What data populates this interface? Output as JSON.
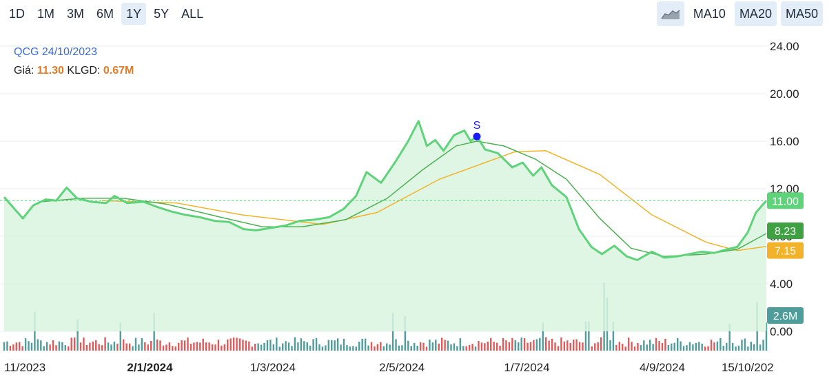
{
  "toolbar": {
    "timeframes": [
      "1D",
      "1M",
      "3M",
      "6M",
      "1Y",
      "5Y",
      "ALL"
    ],
    "active_timeframe": "1Y",
    "chart_type_icon": "area-chart-icon",
    "ma_buttons": [
      "MA10",
      "MA20",
      "MA50"
    ],
    "active_ma": [
      "MA20",
      "MA50"
    ]
  },
  "info": {
    "symbol_date": "QCG 24/10/2023",
    "price_label": "Giá:",
    "price_value": "11.30",
    "volume_label": "KLGD:",
    "volume_value": "0.67M"
  },
  "badges": {
    "last_price": "11.00",
    "ma20": "8.23",
    "ma50": "7.15",
    "volume": "2.6M"
  },
  "marker": {
    "label": "S",
    "date": "2024-06-07",
    "price": 16.4
  },
  "chart_data": {
    "type": "area",
    "y_ticks": [
      "24.00",
      "20.00",
      "16.00",
      "12.00",
      "8.00",
      "4.00",
      "0.00"
    ],
    "ylim": [
      0,
      24
    ],
    "x_ticks": [
      {
        "label": "11/2023",
        "date": "2023-11-01",
        "bold": false
      },
      {
        "label": "2/1/2024",
        "date": "2024-01-02",
        "bold": true
      },
      {
        "label": "1/3/2024",
        "date": "2024-03-01",
        "bold": false
      },
      {
        "label": "2/5/2024",
        "date": "2024-05-02",
        "bold": false
      },
      {
        "label": "1/7/2024",
        "date": "2024-07-01",
        "bold": false
      },
      {
        "label": "4/9/2024",
        "date": "2024-09-04",
        "bold": false
      },
      {
        "label": "15/10/202",
        "date": "2024-10-15",
        "bold": false
      }
    ],
    "x_range": [
      "2023-10-24",
      "2024-10-24"
    ],
    "price_line": {
      "value": 11.0,
      "style": "dashed"
    },
    "colors": {
      "price": "#5fd37a",
      "area": "#d9f5e1",
      "ma20": "#4caf50",
      "ma50": "#f2b32a",
      "vol_up": "#4f9d9a",
      "vol_down": "#e05a5a",
      "badge_price": "#5fd37a",
      "badge_ma20": "#3fa142",
      "badge_ma50": "#f2b32a",
      "badge_volume": "#4f9d9a",
      "marker": "#1a1aff"
    },
    "series": [
      {
        "name": "price",
        "points": [
          [
            "2023-10-24",
            11.3
          ],
          [
            "2023-10-28",
            10.5
          ],
          [
            "2023-11-02",
            9.5
          ],
          [
            "2023-11-07",
            10.6
          ],
          [
            "2023-11-13",
            11.1
          ],
          [
            "2023-11-18",
            11.0
          ],
          [
            "2023-11-23",
            12.1
          ],
          [
            "2023-11-28",
            11.2
          ],
          [
            "2023-12-05",
            10.9
          ],
          [
            "2023-12-12",
            10.8
          ],
          [
            "2023-12-16",
            11.4
          ],
          [
            "2023-12-22",
            10.8
          ],
          [
            "2023-12-30",
            10.9
          ],
          [
            "2024-01-05",
            10.5
          ],
          [
            "2024-01-12",
            10.1
          ],
          [
            "2024-01-19",
            9.8
          ],
          [
            "2024-01-26",
            9.6
          ],
          [
            "2024-02-02",
            9.3
          ],
          [
            "2024-02-09",
            9.2
          ],
          [
            "2024-02-16",
            8.6
          ],
          [
            "2024-02-22",
            8.5
          ],
          [
            "2024-02-29",
            8.7
          ],
          [
            "2024-03-07",
            8.9
          ],
          [
            "2024-03-14",
            9.3
          ],
          [
            "2024-03-21",
            9.4
          ],
          [
            "2024-03-28",
            9.6
          ],
          [
            "2024-04-04",
            10.3
          ],
          [
            "2024-04-10",
            11.4
          ],
          [
            "2024-04-15",
            13.4
          ],
          [
            "2024-04-22",
            12.5
          ],
          [
            "2024-04-29",
            14.3
          ],
          [
            "2024-05-05",
            16.0
          ],
          [
            "2024-05-10",
            17.7
          ],
          [
            "2024-05-14",
            15.6
          ],
          [
            "2024-05-18",
            16.1
          ],
          [
            "2024-05-22",
            15.2
          ],
          [
            "2024-05-27",
            16.5
          ],
          [
            "2024-06-01",
            16.9
          ],
          [
            "2024-06-04",
            16.0
          ],
          [
            "2024-06-07",
            16.4
          ],
          [
            "2024-06-11",
            15.3
          ],
          [
            "2024-06-17",
            15.0
          ],
          [
            "2024-06-24",
            13.8
          ],
          [
            "2024-06-29",
            14.2
          ],
          [
            "2024-07-04",
            13.1
          ],
          [
            "2024-07-08",
            13.8
          ],
          [
            "2024-07-13",
            12.3
          ],
          [
            "2024-07-20",
            11.3
          ],
          [
            "2024-07-26",
            8.6
          ],
          [
            "2024-08-01",
            7.1
          ],
          [
            "2024-08-06",
            6.5
          ],
          [
            "2024-08-12",
            7.2
          ],
          [
            "2024-08-18",
            6.3
          ],
          [
            "2024-08-23",
            6.0
          ],
          [
            "2024-08-30",
            6.7
          ],
          [
            "2024-09-05",
            6.2
          ],
          [
            "2024-09-11",
            6.3
          ],
          [
            "2024-09-17",
            6.5
          ],
          [
            "2024-09-23",
            6.7
          ],
          [
            "2024-09-29",
            6.6
          ],
          [
            "2024-10-05",
            6.9
          ],
          [
            "2024-10-10",
            7.1
          ],
          [
            "2024-10-15",
            8.3
          ],
          [
            "2024-10-19",
            10.0
          ],
          [
            "2024-10-24",
            11.0
          ]
        ]
      },
      {
        "name": "MA20",
        "points": [
          [
            "2023-11-10",
            10.9
          ],
          [
            "2023-12-01",
            11.2
          ],
          [
            "2023-12-20",
            11.2
          ],
          [
            "2024-01-10",
            10.7
          ],
          [
            "2024-02-05",
            9.6
          ],
          [
            "2024-02-25",
            8.8
          ],
          [
            "2024-03-15",
            8.8
          ],
          [
            "2024-04-05",
            9.4
          ],
          [
            "2024-04-25",
            11.2
          ],
          [
            "2024-05-12",
            13.6
          ],
          [
            "2024-05-28",
            15.6
          ],
          [
            "2024-06-07",
            16.0
          ],
          [
            "2024-06-20",
            15.6
          ],
          [
            "2024-07-05",
            14.5
          ],
          [
            "2024-07-20",
            12.8
          ],
          [
            "2024-08-05",
            9.5
          ],
          [
            "2024-08-20",
            7.0
          ],
          [
            "2024-09-05",
            6.3
          ],
          [
            "2024-09-25",
            6.5
          ],
          [
            "2024-10-10",
            6.9
          ],
          [
            "2024-10-24",
            8.23
          ]
        ]
      },
      {
        "name": "MA50",
        "points": [
          [
            "2023-12-10",
            11.0
          ],
          [
            "2024-01-15",
            10.8
          ],
          [
            "2024-02-15",
            9.8
          ],
          [
            "2024-03-25",
            9.0
          ],
          [
            "2024-04-20",
            10.0
          ],
          [
            "2024-05-20",
            12.8
          ],
          [
            "2024-06-25",
            15.1
          ],
          [
            "2024-07-10",
            15.2
          ],
          [
            "2024-08-05",
            13.2
          ],
          [
            "2024-08-30",
            9.8
          ],
          [
            "2024-09-25",
            7.5
          ],
          [
            "2024-10-10",
            6.8
          ],
          [
            "2024-10-24",
            7.15
          ]
        ]
      }
    ],
    "volume_max": 8.8,
    "volume_tall_bars": [
      [
        "2023-11-08",
        3.6
      ],
      [
        "2023-11-28",
        2.9
      ],
      [
        "2023-12-19",
        2.6
      ],
      [
        "2024-01-04",
        3.5
      ],
      [
        "2024-04-27",
        3.5
      ],
      [
        "2024-05-04",
        3.2
      ],
      [
        "2024-07-09",
        2.6
      ],
      [
        "2024-07-30",
        2.7
      ],
      [
        "2024-08-07",
        6.3
      ],
      [
        "2024-08-09",
        4.9
      ],
      [
        "2024-08-12",
        2.7
      ],
      [
        "2024-10-06",
        2.5
      ],
      [
        "2024-10-20",
        4.5
      ],
      [
        "2024-10-24",
        2.6
      ]
    ]
  }
}
